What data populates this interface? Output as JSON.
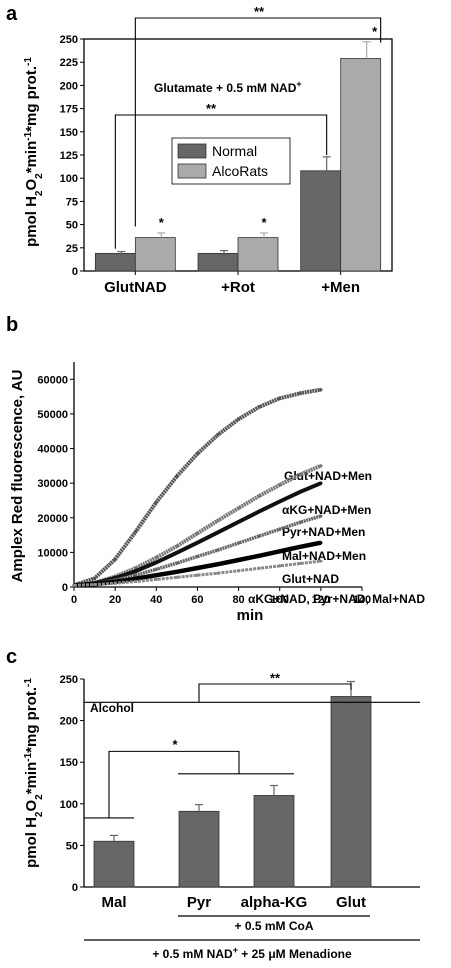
{
  "panels": {
    "a": "a",
    "b": "b",
    "c": "c"
  },
  "chart_data": [
    {
      "type": "bar",
      "panel": "a",
      "ylabel": "pmol H2O2*min-1*mg prot.-1",
      "ylabel_parts": {
        "main": "pmol H",
        "sub1": "2",
        "mid": "O",
        "sub2": "2",
        "mid2": "*min",
        "sup1": "-1",
        "mid3": "*mg prot.",
        "sup2": "-1"
      },
      "ylim": [
        0,
        250
      ],
      "yticks": [
        "0",
        "25",
        "50",
        "75",
        "100",
        "125",
        "150",
        "175",
        "200",
        "225",
        "250"
      ],
      "categories": [
        "GlutNAD",
        "+Rot",
        "+Men"
      ],
      "series": [
        {
          "name": "Normal",
          "color": "#666666",
          "values": [
            19,
            19,
            108
          ],
          "errors": [
            2,
            3,
            15
          ]
        },
        {
          "name": "AlcoRats",
          "color": "#aaaaaa",
          "values": [
            36,
            36,
            229
          ],
          "errors": [
            5,
            5,
            18
          ]
        }
      ],
      "annotation": "Glutamate + 0.5 mM NAD",
      "annotation_sup": "+",
      "star_labels": [
        "*",
        "*",
        "*"
      ],
      "brackets": [
        "**",
        "**"
      ],
      "legend_position": "center"
    },
    {
      "type": "scatter",
      "panel": "b",
      "xlabel": "min",
      "ylabel": "Amplex Red fluorescence, AU",
      "xlim": [
        0,
        140
      ],
      "ylim": [
        0,
        65000
      ],
      "xticks": [
        "0",
        "20",
        "40",
        "60",
        "80",
        "100",
        "120",
        "140"
      ],
      "yticks": [
        "0",
        "10000",
        "20000",
        "30000",
        "40000",
        "50000",
        "60000"
      ],
      "series": [
        {
          "label": "Glut+NAD+Men",
          "x": [
            0,
            10,
            20,
            30,
            40,
            50,
            60,
            70,
            80,
            90,
            100,
            110,
            120
          ],
          "y": [
            500,
            2500,
            8000,
            16000,
            24500,
            32000,
            38500,
            44000,
            48500,
            52000,
            54500,
            56000,
            57000
          ]
        },
        {
          "label": "αKG+NAD+Men",
          "x": [
            0,
            10,
            20,
            30,
            40,
            50,
            60,
            70,
            80,
            90,
            100,
            110,
            120
          ],
          "y": [
            500,
            1200,
            3000,
            5500,
            8500,
            11800,
            15500,
            19200,
            22800,
            26300,
            29500,
            32500,
            35000
          ]
        },
        {
          "label": "Pyr+NAD+Men",
          "x": [
            0,
            10,
            20,
            30,
            40,
            50,
            60,
            70,
            80,
            90,
            100,
            110,
            120
          ],
          "y": [
            500,
            1100,
            2600,
            4600,
            7100,
            9900,
            12800,
            15800,
            18800,
            21800,
            24700,
            27500,
            30000
          ]
        },
        {
          "label": "Mal+NAD+Men",
          "x": [
            0,
            10,
            20,
            30,
            40,
            50,
            60,
            70,
            80,
            90,
            100,
            110,
            120
          ],
          "y": [
            500,
            900,
            2000,
            3400,
            5100,
            6900,
            8800,
            10700,
            12700,
            14700,
            16700,
            18700,
            20500
          ]
        },
        {
          "label": "Glut+NAD",
          "x": [
            0,
            10,
            20,
            30,
            40,
            50,
            60,
            70,
            80,
            90,
            100,
            110,
            120
          ],
          "y": [
            500,
            800,
            1500,
            2400,
            3400,
            4400,
            5500,
            6600,
            7800,
            9000,
            10300,
            11600,
            12800
          ]
        },
        {
          "label": "αKG+NAD, Pyr+NAD, Mal+NAD",
          "x": [
            0,
            10,
            20,
            30,
            40,
            50,
            60,
            70,
            80,
            90,
            100,
            110,
            120
          ],
          "y": [
            500,
            700,
            1100,
            1600,
            2200,
            2800,
            3400,
            4000,
            4700,
            5400,
            6100,
            6800,
            7500
          ]
        }
      ]
    },
    {
      "type": "bar",
      "panel": "c",
      "ylabel": "pmol H2O2*min-1*mg prot.-1",
      "ylabel_parts": {
        "main": "pmol H",
        "sub1": "2",
        "mid": "O",
        "sub2": "2",
        "mid2": "*min",
        "sup1": "-1",
        "mid3": "*mg prot.",
        "sup2": "-1"
      },
      "ylim": [
        0,
        250
      ],
      "yticks": [
        "0",
        "50",
        "100",
        "150",
        "200",
        "250"
      ],
      "categories": [
        "Mal",
        "Pyr",
        "alpha-KG",
        "Glut"
      ],
      "values": [
        55,
        91,
        110,
        229
      ],
      "errors": [
        7,
        8,
        12,
        18
      ],
      "color": "#666666",
      "annotation": "Alcohol",
      "sig_labels": [
        "*",
        "**"
      ],
      "footer1": "+ 0.5 mM CoA",
      "footer2_pre": "+ 0.5 mM NAD",
      "footer2_sup": "+",
      "footer2_mid": " + 25 ",
      "footer2_mu": "μ",
      "footer2_post": "M Menadione"
    }
  ]
}
